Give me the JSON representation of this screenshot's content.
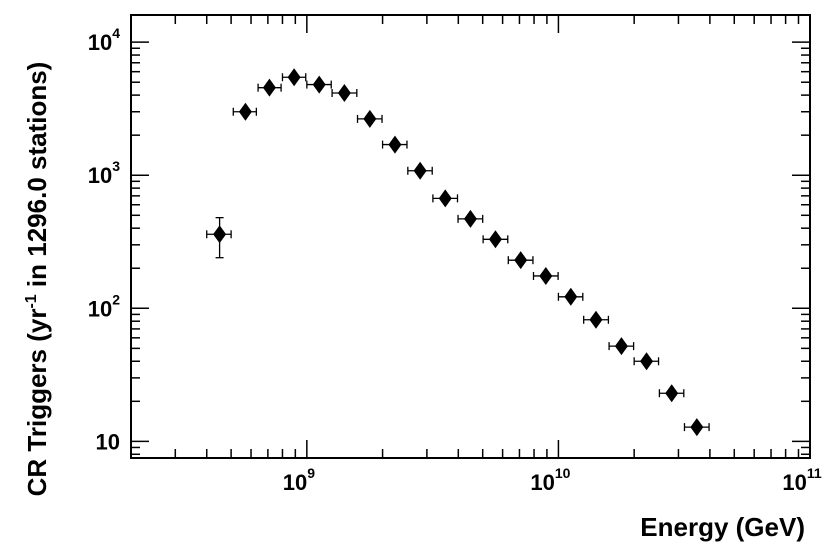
{
  "chart_data": {
    "type": "scatter",
    "title": "",
    "xlabel": "Energy (GeV)",
    "ylabel_parts": [
      "CR Triggers (yr",
      "-1",
      " in 1296.0 stations)"
    ],
    "xscale": "log",
    "yscale": "log",
    "xlim": [
      200000000.0,
      100000000000.0
    ],
    "ylim": [
      7.5,
      16000
    ],
    "grid": false,
    "legend": "none",
    "marker": "diamond",
    "marker_color": "#000000",
    "x_ticks": [
      {
        "value": 1000000000.0,
        "base": "10",
        "exp": "9"
      },
      {
        "value": 10000000000.0,
        "base": "10",
        "exp": "10"
      },
      {
        "value": 100000000000.0,
        "base": "10",
        "exp": "11"
      }
    ],
    "y_ticks": [
      {
        "value": 10,
        "base": "10",
        "exp": ""
      },
      {
        "value": 100,
        "base": "10",
        "exp": "2"
      },
      {
        "value": 1000,
        "base": "10",
        "exp": "3"
      },
      {
        "value": 10000,
        "base": "10",
        "exp": "4"
      }
    ],
    "points": [
      {
        "x": 450000000.0,
        "y": 360,
        "xerr": [
          400000000.0,
          500000000.0
        ],
        "yerr": [
          240,
          480
        ]
      },
      {
        "x": 570000000.0,
        "y": 3000,
        "xerr": [
          510000000.0,
          630000000.0
        ]
      },
      {
        "x": 710000000.0,
        "y": 4550,
        "xerr": [
          640000000.0,
          790000000.0
        ]
      },
      {
        "x": 890000000.0,
        "y": 5450,
        "xerr": [
          800000000.0,
          990000000.0
        ]
      },
      {
        "x": 1120000000.0,
        "y": 4800,
        "xerr": [
          1000000000.0,
          1250000000.0
        ]
      },
      {
        "x": 1410000000.0,
        "y": 4150,
        "xerr": [
          1260000000.0,
          1580000000.0
        ]
      },
      {
        "x": 1780000000.0,
        "y": 2650,
        "xerr": [
          1590000000.0,
          1990000000.0
        ]
      },
      {
        "x": 2240000000.0,
        "y": 1700,
        "xerr": [
          2000000000.0,
          2500000000.0
        ]
      },
      {
        "x": 2820000000.0,
        "y": 1080,
        "xerr": [
          2520000000.0,
          3150000000.0
        ]
      },
      {
        "x": 3550000000.0,
        "y": 670,
        "xerr": [
          3170000000.0,
          3970000000.0
        ]
      },
      {
        "x": 4470000000.0,
        "y": 470,
        "xerr": [
          3990000000.0,
          5000000000.0
        ]
      },
      {
        "x": 5620000000.0,
        "y": 330,
        "xerr": [
          5020000000.0,
          6290000000.0
        ]
      },
      {
        "x": 7080000000.0,
        "y": 230,
        "xerr": [
          6320000000.0,
          7920000000.0
        ]
      },
      {
        "x": 8910000000.0,
        "y": 175,
        "xerr": [
          7960000000.0,
          9970000000.0
        ]
      },
      {
        "x": 11200000000.0,
        "y": 122,
        "xerr": [
          10000000000.0,
          12500000000.0
        ]
      },
      {
        "x": 14100000000.0,
        "y": 82,
        "xerr": [
          12600000000.0,
          15800000000.0
        ]
      },
      {
        "x": 17800000000.0,
        "y": 52,
        "xerr": [
          15900000000.0,
          19900000000.0
        ]
      },
      {
        "x": 22400000000.0,
        "y": 40,
        "xerr": [
          20000000000.0,
          25000000000.0
        ]
      },
      {
        "x": 28200000000.0,
        "y": 23,
        "xerr": [
          25200000000.0,
          31500000000.0
        ]
      },
      {
        "x": 35500000000.0,
        "y": 12.8,
        "xerr": [
          31700000000.0,
          39700000000.0
        ]
      }
    ]
  }
}
